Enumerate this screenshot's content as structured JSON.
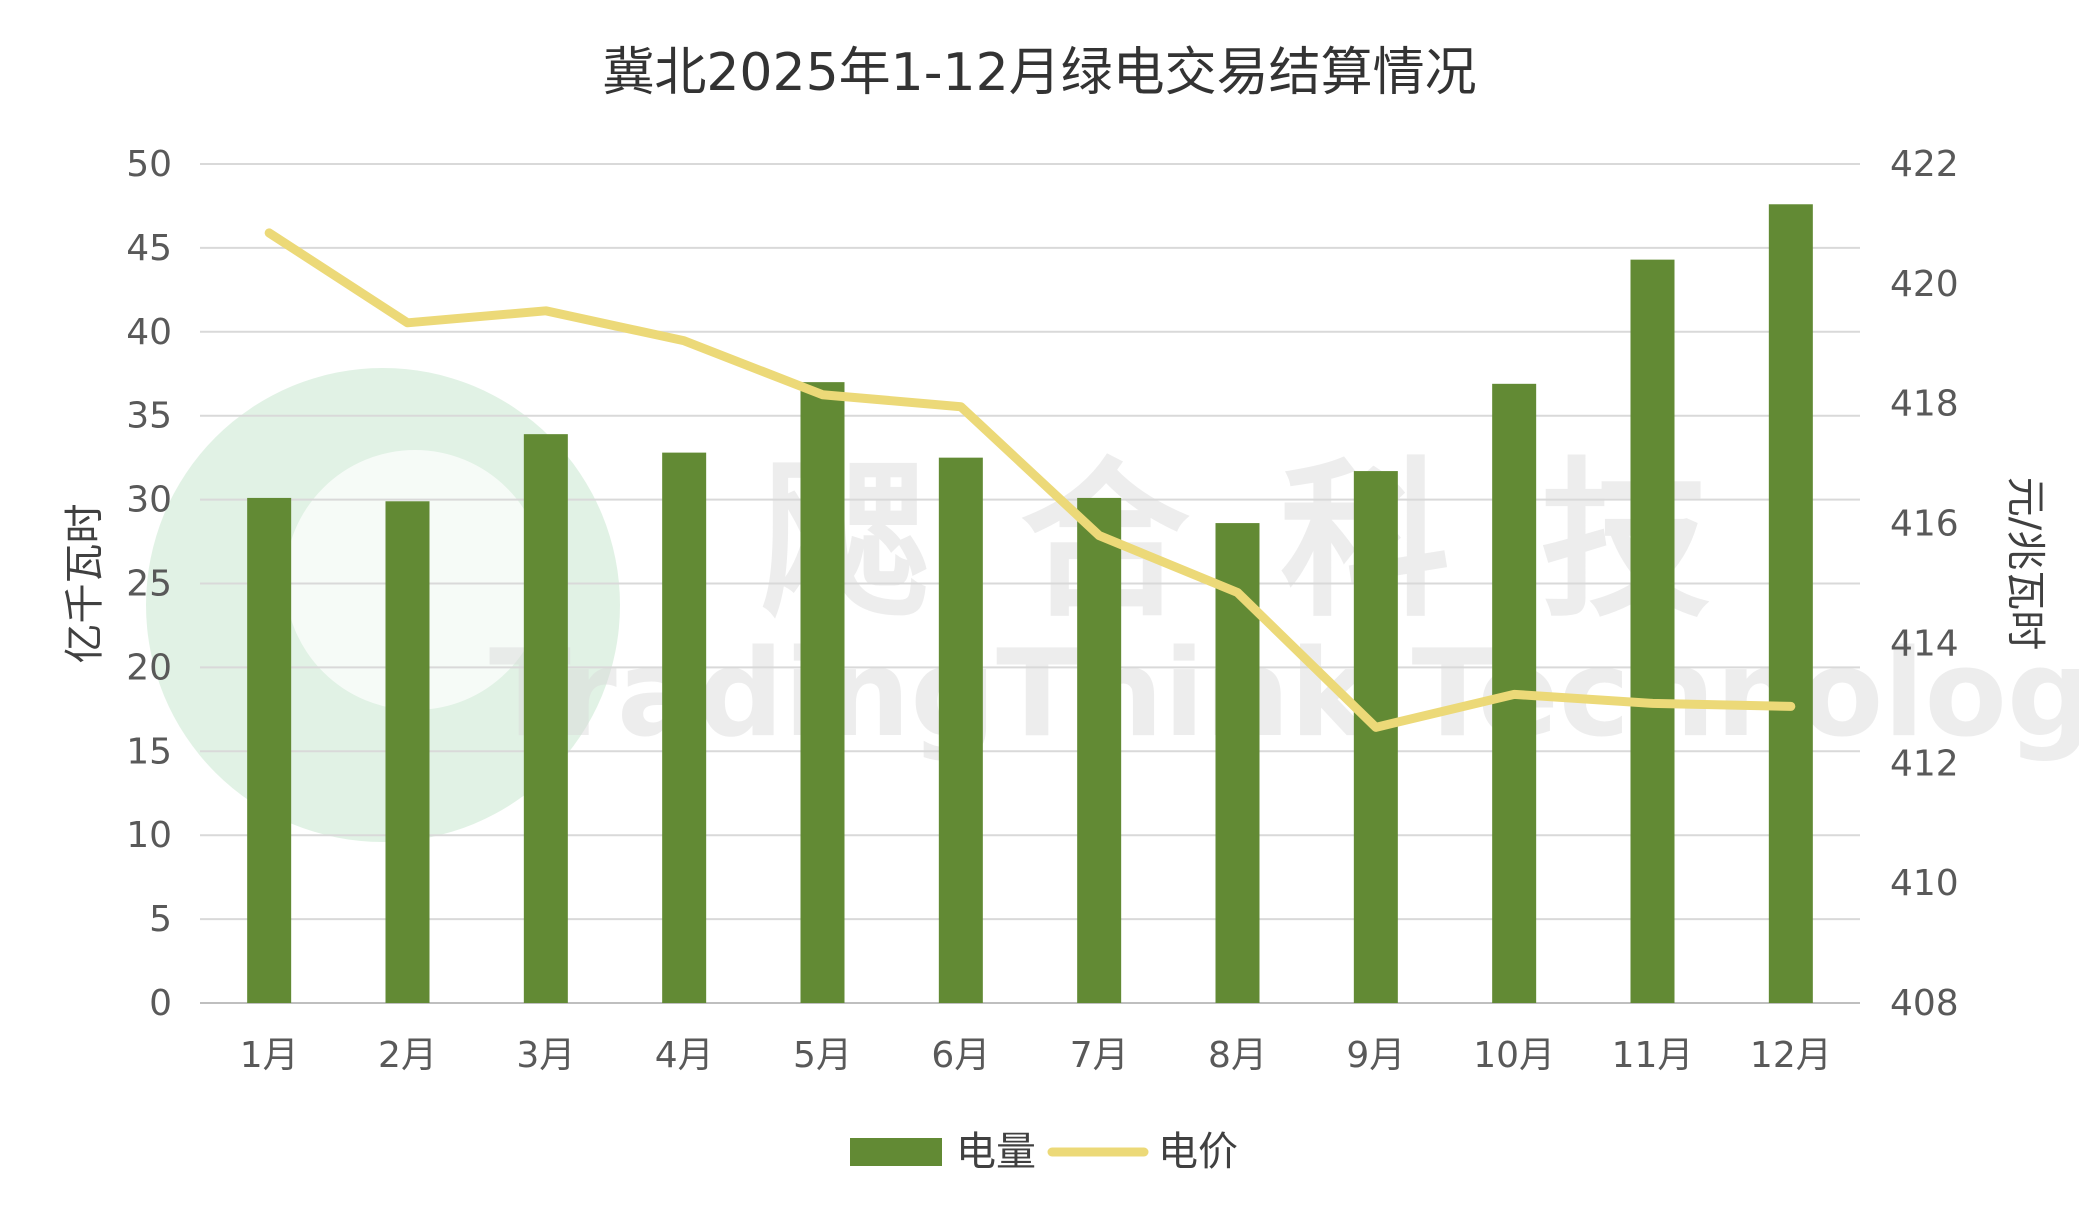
{
  "chart_data": {
    "type": "bar",
    "title": "冀北2025年1-12月绿电交易结算情况",
    "categories": [
      "1月",
      "2月",
      "3月",
      "4月",
      "5月",
      "6月",
      "7月",
      "8月",
      "9月",
      "10月",
      "11月",
      "12月"
    ],
    "series": [
      {
        "name": "电量",
        "type": "bar",
        "axis": "left",
        "color": "#628a34",
        "values": [
          30.1,
          29.9,
          33.9,
          32.8,
          37.0,
          32.5,
          30.1,
          28.6,
          31.7,
          36.9,
          44.3,
          47.6
        ]
      },
      {
        "name": "电价",
        "type": "line",
        "axis": "right",
        "color": "#ecd978",
        "values": [
          420.85,
          419.35,
          419.55,
          419.05,
          418.15,
          417.95,
          415.8,
          414.85,
          412.6,
          413.15,
          413.0,
          412.95
        ]
      }
    ],
    "y_left": {
      "label": "亿千瓦时",
      "min": 0,
      "max": 50,
      "step": 5,
      "ticks": [
        "0",
        "5",
        "10",
        "15",
        "20",
        "25",
        "30",
        "35",
        "40",
        "45",
        "50"
      ]
    },
    "y_right": {
      "label": "元/兆瓦时",
      "min": 408,
      "max": 422,
      "step": 2,
      "ticks": [
        "408",
        "410",
        "412",
        "414",
        "416",
        "418",
        "420",
        "422"
      ]
    },
    "grid": true,
    "legend_position": "bottom"
  },
  "watermark": {
    "cn": "飔合科技",
    "en": "TradingThink Technology",
    "logo_color": "#d7eedc"
  }
}
